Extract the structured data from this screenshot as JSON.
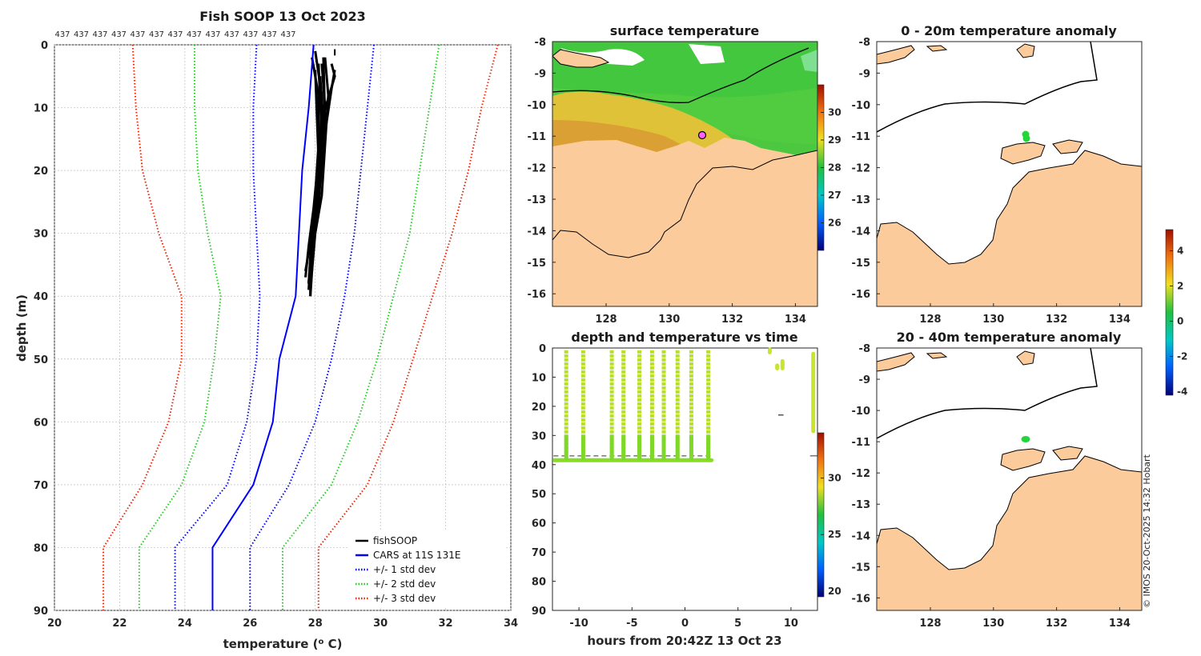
{
  "figure": {
    "main_title": "Fish SOOP 13 Oct 2023",
    "credit": "© IMOS 20-Oct-2025 14:32 Hobart",
    "colors": {
      "fishsoop": "#000000",
      "cars": "#0000ff",
      "std1": "#0000ff",
      "std2": "#22cc22",
      "std3": "#ee2200",
      "land": "#fbcb9c",
      "coast": "#000000",
      "grid": "#bdbdbd"
    }
  },
  "chart_data": [
    {
      "id": "profile",
      "type": "line",
      "title": "Fish SOOP 13 Oct 2023",
      "xlabel": "temperature (o C)",
      "xlabel_main": "temperature (",
      "xlabel_sup": "o",
      "xlabel_end": " C)",
      "ylabel": "depth (m)",
      "xlim": [
        20,
        34
      ],
      "ylim": [
        0,
        90
      ],
      "y_reversed": true,
      "xticks": [
        20,
        22,
        24,
        26,
        28,
        30,
        32,
        34
      ],
      "yticks": [
        0,
        10,
        20,
        30,
        40,
        50,
        60,
        70,
        80,
        90
      ],
      "grid": true,
      "legend_position": "bottom-right",
      "top_labels": [
        "437",
        "437",
        "437",
        "437",
        "437",
        "437",
        "437",
        "437",
        "437",
        "437",
        "437",
        "437",
        "437"
      ],
      "depth": [
        0,
        10,
        20,
        30,
        40,
        50,
        60,
        70,
        80,
        90
      ],
      "series": [
        {
          "name": "fishSOOP",
          "style": "solid",
          "color": "#000000",
          "width": 3,
          "curves": [
            {
              "x": [
                27.9,
                28.1,
                28.1,
                28.0,
                27.9,
                27.85,
                27.85
              ],
              "y": [
                2,
                8,
                16,
                24,
                30,
                36,
                40
              ]
            },
            {
              "x": [
                28.0,
                28.2,
                28.15,
                28.05,
                27.95,
                27.9,
                27.85
              ],
              "y": [
                1,
                8,
                16,
                24,
                30,
                36,
                40
              ]
            },
            {
              "x": [
                28.2,
                28.3,
                28.2,
                28.1,
                27.9,
                27.8
              ],
              "y": [
                3,
                10,
                18,
                26,
                32,
                38
              ]
            },
            {
              "x": [
                28.3,
                28.4,
                28.3,
                28.2,
                28.0,
                27.9
              ],
              "y": [
                2,
                8,
                16,
                24,
                30,
                36
              ]
            },
            {
              "x": [
                28.5,
                28.6,
                28.2,
                28.1,
                28.0,
                27.85,
                27.8
              ],
              "y": [
                3,
                5,
                12,
                22,
                28,
                34,
                38
              ]
            },
            {
              "x": [
                28.6,
                28.5,
                28.3,
                28.1,
                27.9,
                27.8
              ],
              "y": [
                4,
                7,
                14,
                24,
                32,
                38
              ]
            },
            {
              "x": [
                28.25,
                28.3,
                28.2,
                28.0,
                27.85,
                27.8
              ],
              "y": [
                2,
                12,
                20,
                28,
                34,
                39
              ]
            },
            {
              "x": [
                28.1,
                28.2,
                28.1,
                27.9,
                27.7
              ],
              "y": [
                3,
                14,
                22,
                30,
                36
              ]
            },
            {
              "x": [
                28.0,
                28.1,
                27.95,
                27.8,
                27.7
              ],
              "y": [
                4,
                18,
                26,
                32,
                37
              ]
            },
            {
              "x": [
                28.15,
                28.25,
                28.1,
                27.9,
                27.8
              ],
              "y": [
                5,
                12,
                22,
                30,
                38
              ]
            }
          ]
        },
        {
          "name": "CARS at 11S 131E",
          "style": "solid",
          "color": "#0000ff",
          "width": 2,
          "x": [
            27.95,
            27.8,
            27.6,
            27.5,
            27.4,
            26.9,
            26.7,
            26.1,
            24.85,
            24.85
          ]
        },
        {
          "name": "+/- 1 std dev",
          "style": "dotted",
          "color": "#0000ff",
          "width": 2,
          "left": [
            26.2,
            26.1,
            26.1,
            26.2,
            26.3,
            26.2,
            25.9,
            25.3,
            23.7,
            23.7
          ],
          "right": [
            29.8,
            29.6,
            29.4,
            29.2,
            28.9,
            28.5,
            28.0,
            27.2,
            26.0,
            26.0
          ]
        },
        {
          "name": "+/- 2 std dev",
          "style": "dotted",
          "color": "#22cc22",
          "width": 2,
          "left": [
            24.3,
            24.3,
            24.4,
            24.7,
            25.1,
            24.9,
            24.6,
            23.9,
            22.6,
            22.6
          ],
          "right": [
            31.8,
            31.5,
            31.2,
            30.9,
            30.4,
            29.9,
            29.3,
            28.5,
            27.0,
            27.0
          ]
        },
        {
          "name": "+/- 3 std dev",
          "style": "dotted",
          "color": "#ee2200",
          "width": 2,
          "left": [
            22.4,
            22.5,
            22.7,
            23.2,
            23.9,
            23.9,
            23.5,
            22.7,
            21.5,
            21.5
          ],
          "right": [
            33.6,
            33.1,
            32.7,
            32.2,
            31.6,
            31.0,
            30.4,
            29.6,
            28.1,
            28.1
          ]
        }
      ],
      "legend": [
        {
          "label": "fishSOOP",
          "color": "#000000",
          "style": "solid"
        },
        {
          "label": "CARS at 11S 131E",
          "color": "#0000ff",
          "style": "solid"
        },
        {
          "label": "+/- 1 std dev",
          "color": "#0000ff",
          "style": "dotted"
        },
        {
          "label": "+/- 2 std dev",
          "color": "#22cc22",
          "style": "dotted"
        },
        {
          "label": "+/- 3 std dev",
          "color": "#ee2200",
          "style": "dotted"
        }
      ]
    },
    {
      "id": "sst_map",
      "type": "heatmap",
      "title": "surface temperature",
      "xlim": [
        126.3,
        134.7
      ],
      "ylim": [
        -16.4,
        -8
      ],
      "xticks": [
        128,
        130,
        132,
        134
      ],
      "yticks": [
        -8,
        -9,
        -10,
        -11,
        -12,
        -13,
        -14,
        -15,
        -16
      ],
      "colorbar": {
        "min": 25,
        "max": 31,
        "ticks": [
          26,
          27,
          28,
          29,
          30
        ],
        "colors": [
          "#00007a",
          "#0060ff",
          "#00c8c8",
          "#20c040",
          "#f0e020",
          "#f07010",
          "#a01000"
        ]
      },
      "location": {
        "lon": 130.9,
        "lat": -11.0
      }
    },
    {
      "id": "anom_0_20",
      "type": "scatter",
      "title": "0 - 20m temperature anomaly",
      "xlim": [
        126.3,
        134.7
      ],
      "ylim": [
        -16.4,
        -8
      ],
      "xticks": [
        128,
        130,
        132,
        134
      ],
      "yticks": [
        -8,
        -9,
        -10,
        -11,
        -12,
        -13,
        -14,
        -15,
        -16
      ],
      "points": [
        {
          "lon": 130.95,
          "lat": -11.0,
          "anomaly": 0.8
        },
        {
          "lon": 131.0,
          "lat": -11.08,
          "anomaly": 0.9
        }
      ]
    },
    {
      "id": "anom_20_40",
      "type": "scatter",
      "title": "20 - 40m temperature anomaly",
      "xlim": [
        126.3,
        134.7
      ],
      "ylim": [
        -16.4,
        -8
      ],
      "xticks": [
        128,
        130,
        132,
        134
      ],
      "yticks": [
        -8,
        -9,
        -10,
        -11,
        -12,
        -13,
        -14,
        -15,
        -16
      ],
      "points": [
        {
          "lon": 130.95,
          "lat": -11.0,
          "anomaly": 0.7
        }
      ]
    },
    {
      "id": "anomaly_colorbar",
      "type": "heatmap",
      "min": -4.2,
      "max": 5.2,
      "ticks": [
        -4,
        -2,
        0,
        2,
        4
      ],
      "colors": [
        "#00007a",
        "#0060ff",
        "#00c8c8",
        "#20c040",
        "#f0e020",
        "#f07010",
        "#a01000"
      ]
    },
    {
      "id": "depth_time",
      "type": "scatter",
      "title": "depth and temperature vs time",
      "xlabel": "hours from 20:42Z 13 Oct 23",
      "xlim": [
        -12.5,
        12.5
      ],
      "ylim": [
        0,
        90
      ],
      "y_reversed": true,
      "xticks": [
        -10,
        -5,
        0,
        5,
        10
      ],
      "yticks": [
        0,
        10,
        20,
        30,
        40,
        50,
        60,
        70,
        80,
        90
      ],
      "casts_hours": [
        -11.2,
        -9.6,
        -6.9,
        -5.8,
        -4.3,
        -3.1,
        -2.0,
        -0.7,
        0.6,
        2.2
      ],
      "cast_max_depth": 38.5,
      "bottom_line_depth": 37,
      "late_points": [
        {
          "h": 8.0,
          "depth_from": 0.5,
          "depth_to": 1.5
        },
        {
          "h": 9.2,
          "depth_from": 4.5,
          "depth_to": 7.0
        },
        {
          "h": 8.7,
          "depth_from": 6.0,
          "depth_to": 7.0
        },
        {
          "h": 12.1,
          "depth_from": 2.0,
          "depth_to": 28.5
        }
      ],
      "colorbar": {
        "min": 19.5,
        "max": 34,
        "ticks": [
          20,
          25,
          30
        ],
        "colors": [
          "#00007a",
          "#0060ff",
          "#00c8c8",
          "#20c040",
          "#f0e020",
          "#f07010",
          "#a01000"
        ]
      }
    }
  ]
}
